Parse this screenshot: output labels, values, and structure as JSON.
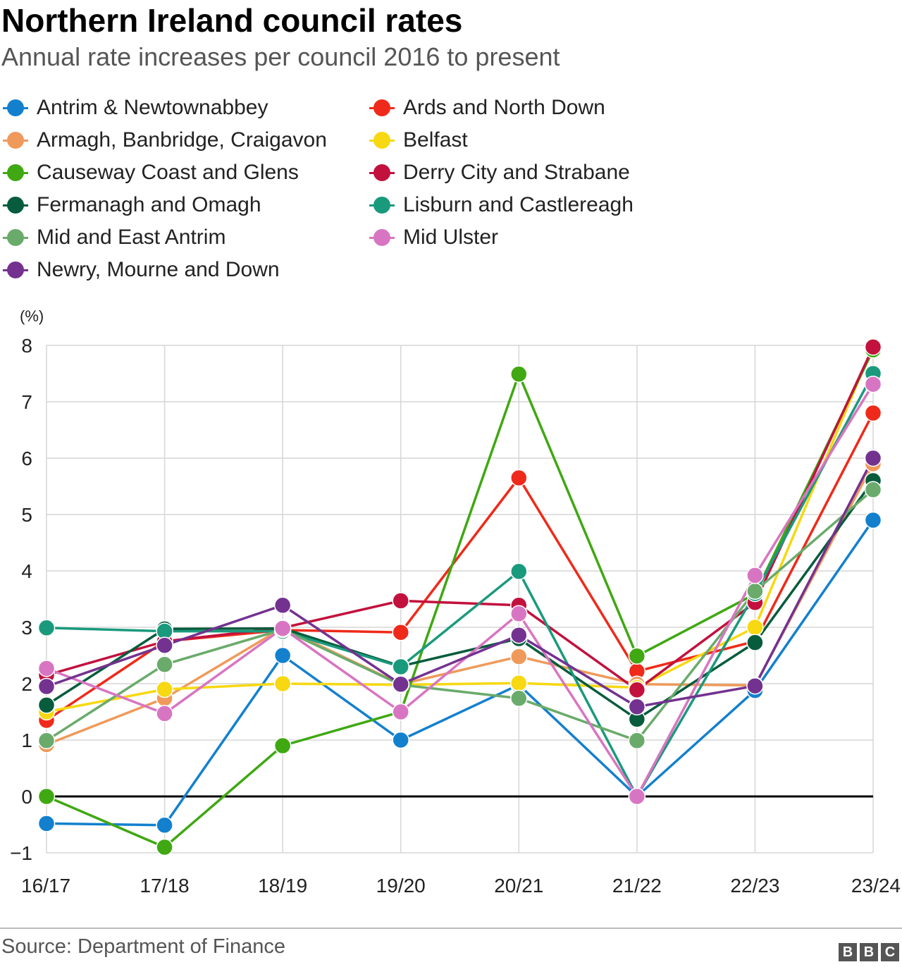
{
  "header": {
    "title": "Northern Ireland council rates",
    "subtitle": "Annual rate increases per council 2016 to present"
  },
  "footer": {
    "source": "Source: Department of Finance",
    "logo_letters": [
      "B",
      "B",
      "C"
    ]
  },
  "chart_data": {
    "type": "line",
    "ylabel": "(%)",
    "ylim": [
      -1,
      8
    ],
    "yticks": [
      "−1",
      "0",
      "1",
      "2",
      "3",
      "4",
      "5",
      "6",
      "7",
      "8"
    ],
    "ytick_values": [
      -1,
      0,
      1,
      2,
      3,
      4,
      5,
      6,
      7,
      8
    ],
    "categories": [
      "16/17",
      "17/18",
      "18/19",
      "19/20",
      "20/21",
      "21/22",
      "22/23",
      "23/24"
    ],
    "grid": true,
    "legend_position": "top",
    "series": [
      {
        "name": "Antrim & Newtownabbey",
        "color": "#1380ce",
        "values": [
          -0.48,
          -0.51,
          2.5,
          1.0,
          1.98,
          0.0,
          1.88,
          4.9
        ]
      },
      {
        "name": "Ards and North Down",
        "color": "#ef2a1a",
        "values": [
          1.35,
          2.75,
          2.95,
          2.91,
          5.65,
          2.22,
          2.75,
          6.8
        ]
      },
      {
        "name": "Armagh, Banbridge, Craigavon",
        "color": "#ef9a5b",
        "values": [
          0.92,
          1.74,
          2.99,
          1.99,
          2.48,
          1.99,
          1.97,
          5.9
        ]
      },
      {
        "name": "Belfast",
        "color": "#f7d811",
        "values": [
          1.5,
          1.9,
          2.0,
          1.98,
          2.01,
          1.93,
          3.0,
          7.99
        ]
      },
      {
        "name": "Causeway Coast and Glens",
        "color": "#3fa812",
        "values": [
          0.0,
          -0.9,
          0.9,
          1.5,
          7.49,
          2.49,
          3.59,
          7.92
        ]
      },
      {
        "name": "Derry City and Strabane",
        "color": "#c2113d",
        "values": [
          2.15,
          2.75,
          2.99,
          3.47,
          3.39,
          1.89,
          3.44,
          7.97
        ]
      },
      {
        "name": "Fermanagh and Omagh",
        "color": "#065c3c",
        "values": [
          1.62,
          2.97,
          2.98,
          2.31,
          2.8,
          1.37,
          2.73,
          5.6
        ]
      },
      {
        "name": "Lisburn and Castlereagh",
        "color": "#1a9a7c",
        "values": [
          2.99,
          2.93,
          2.93,
          2.3,
          3.99,
          0.0,
          3.6,
          7.5
        ]
      },
      {
        "name": "Mid and East Antrim",
        "color": "#6aab6b",
        "values": [
          0.99,
          2.34,
          2.96,
          1.98,
          1.74,
          0.99,
          3.64,
          5.44
        ]
      },
      {
        "name": "Mid Ulster",
        "color": "#d875c2",
        "values": [
          2.27,
          1.47,
          2.98,
          1.5,
          3.24,
          0.0,
          3.92,
          7.31
        ]
      },
      {
        "name": "Newry, Mourne and Down",
        "color": "#733290",
        "values": [
          1.95,
          2.68,
          3.39,
          1.99,
          2.86,
          1.59,
          1.96,
          6.0
        ]
      }
    ]
  }
}
